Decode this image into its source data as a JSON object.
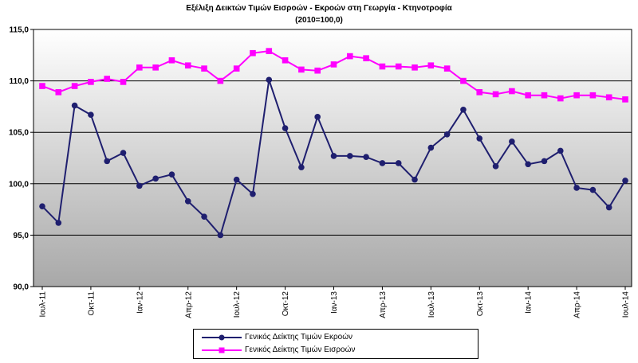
{
  "chart_data": {
    "type": "line",
    "title": "Εξέλιξη Δεικτών Τιμών Εισροών - Εκροών στη Γεωργία - Κτηνοτροφία",
    "subtitle": "(2010=100,0)",
    "xlabel": "",
    "ylabel": "",
    "ylim": [
      90,
      115
    ],
    "yticks": [
      "90,0",
      "95,0",
      "100,0",
      "105,0",
      "110,0",
      "115,0"
    ],
    "ytick_values": [
      90,
      95,
      100,
      105,
      110,
      115
    ],
    "x_tick_labels": [
      {
        "index": 0,
        "label": "Ιουλ-11"
      },
      {
        "index": 3,
        "label": "Οκτ-11"
      },
      {
        "index": 6,
        "label": "Ιαν-12"
      },
      {
        "index": 9,
        "label": "Απρ-12"
      },
      {
        "index": 12,
        "label": "Ιουλ-12"
      },
      {
        "index": 15,
        "label": "Οκτ-12"
      },
      {
        "index": 18,
        "label": "Ιαν-13"
      },
      {
        "index": 21,
        "label": "Απρ-13"
      },
      {
        "index": 24,
        "label": "Ιουλ-13"
      },
      {
        "index": 27,
        "label": "Οκτ-13"
      },
      {
        "index": 30,
        "label": "Ιαν-14"
      },
      {
        "index": 33,
        "label": "Απρ-14"
      },
      {
        "index": 36,
        "label": "Ιουλ-14"
      }
    ],
    "grid": true,
    "legend": "bottom",
    "series": [
      {
        "name": "Γενικός Δείκτης Τιμών Εκροών",
        "color": "#1f1f6f",
        "marker": "circle",
        "values": [
          97.8,
          96.2,
          107.6,
          106.7,
          102.2,
          103.0,
          99.8,
          100.5,
          100.9,
          98.3,
          96.8,
          95.0,
          100.4,
          99.0,
          110.1,
          105.4,
          101.6,
          106.5,
          102.7,
          102.7,
          102.6,
          102.0,
          102.0,
          100.4,
          103.5,
          104.8,
          107.2,
          104.4,
          101.7,
          104.1,
          101.9,
          102.2,
          103.2,
          99.6,
          99.4,
          97.7,
          100.3
        ]
      },
      {
        "name": "Γενικός Δείκτης Τιμών Εισροών",
        "color": "#ff00ff",
        "marker": "square",
        "values": [
          109.5,
          108.9,
          109.5,
          109.9,
          110.2,
          109.9,
          111.3,
          111.3,
          112.0,
          111.5,
          111.2,
          110.0,
          111.2,
          112.7,
          112.9,
          112.0,
          111.1,
          111.0,
          111.6,
          112.4,
          112.2,
          111.4,
          111.4,
          111.3,
          111.5,
          111.2,
          110.0,
          108.9,
          108.7,
          109.0,
          108.6,
          108.6,
          108.3,
          108.6,
          108.6,
          108.4,
          108.2
        ]
      }
    ]
  }
}
